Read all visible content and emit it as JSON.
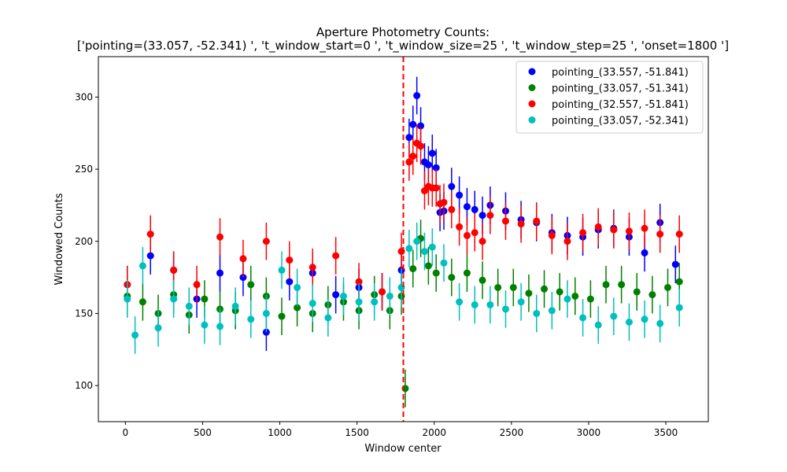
{
  "chart_data": {
    "type": "scatter",
    "title": "Aperture Photometry Counts:",
    "subtitle": "['pointing=(33.057, -52.341) ', 't_window_start=0 ', 't_window_size=25 ', 't_window_step=25 ', 'onset=1800 ']",
    "xlabel": "Window center",
    "ylabel": "Windowed Counts",
    "xlim": [
      -175,
      3775
    ],
    "ylim": [
      75,
      328
    ],
    "xticks": [
      0,
      500,
      1000,
      1500,
      2000,
      2500,
      3000,
      3500
    ],
    "yticks": [
      100,
      150,
      200,
      250,
      300
    ],
    "grid": false,
    "legend_position": "upper right",
    "onset": {
      "x": 1800,
      "color": "#ff0000",
      "style": "dashed"
    },
    "error_bar_half_width": 13,
    "series": [
      {
        "name": "pointing_(33.557, -51.841)",
        "color": "#0000ff",
        "x": [
          12.5,
          162.5,
          312.5,
          462.5,
          612.5,
          762.5,
          912.5,
          1062.5,
          1212.5,
          1362.5,
          1512.5,
          1662.5,
          1787.5,
          1837.5,
          1862.5,
          1887.5,
          1912.5,
          1937.5,
          1962.5,
          1987.5,
          2012.5,
          2037.5,
          2062.5,
          2112.5,
          2162.5,
          2212.5,
          2262.5,
          2312.5,
          2362.5,
          2462.5,
          2562.5,
          2662.5,
          2762.5,
          2862.5,
          2962.5,
          3062.5,
          3162.5,
          3262.5,
          3362.5,
          3462.5,
          3562.5
        ],
        "y": [
          170,
          190,
          180,
          160,
          178,
          175,
          137,
          172,
          178,
          163,
          168,
          165,
          180,
          272,
          281,
          301,
          280,
          255,
          253,
          261,
          251,
          220,
          221,
          238,
          232,
          224,
          222,
          218,
          225,
          221,
          215,
          213,
          206,
          204,
          203,
          208,
          209,
          203,
          192,
          213,
          184
        ]
      },
      {
        "name": "pointing_(33.057, -51.341)",
        "color": "#008000",
        "x": [
          12.5,
          112.5,
          212.5,
          312.5,
          412.5,
          512.5,
          612.5,
          712.5,
          812.5,
          912.5,
          1012.5,
          1112.5,
          1212.5,
          1312.5,
          1412.5,
          1512.5,
          1612.5,
          1712.5,
          1787.5,
          1812.5,
          1862.5,
          1912.5,
          1962.5,
          2012.5,
          2112.5,
          2212.5,
          2312.5,
          2412.5,
          2512.5,
          2612.5,
          2712.5,
          2812.5,
          2912.5,
          3012.5,
          3112.5,
          3212.5,
          3312.5,
          3412.5,
          3512.5,
          3587.5
        ],
        "y": [
          162,
          158,
          150,
          163,
          149,
          160,
          153,
          152,
          170,
          162,
          148,
          154,
          150,
          156,
          158,
          152,
          163,
          152,
          162,
          98,
          181,
          202,
          183,
          178,
          175,
          178,
          173,
          168,
          168,
          164,
          167,
          165,
          162,
          160,
          170,
          170,
          165,
          163,
          168,
          172
        ]
      },
      {
        "name": "pointing_(32.557, -51.841)",
        "color": "#ff0000",
        "x": [
          12.5,
          162.5,
          312.5,
          462.5,
          612.5,
          762.5,
          912.5,
          1062.5,
          1212.5,
          1362.5,
          1512.5,
          1662.5,
          1787.5,
          1837.5,
          1862.5,
          1887.5,
          1912.5,
          1937.5,
          1962.5,
          1987.5,
          2012.5,
          2037.5,
          2062.5,
          2112.5,
          2162.5,
          2212.5,
          2262.5,
          2312.5,
          2362.5,
          2462.5,
          2562.5,
          2662.5,
          2762.5,
          2862.5,
          2962.5,
          3062.5,
          3162.5,
          3262.5,
          3362.5,
          3462.5,
          3587.5
        ],
        "y": [
          170,
          205,
          180,
          170,
          203,
          188,
          200,
          187,
          182,
          190,
          172,
          165,
          193,
          255,
          259,
          268,
          266,
          235,
          238,
          237,
          237,
          226,
          227,
          222,
          210,
          204,
          206,
          200,
          218,
          214,
          212,
          214,
          204,
          200,
          206,
          210,
          208,
          207,
          209,
          205,
          205
        ]
      },
      {
        "name": "pointing_(33.057, -52.341)",
        "color": "#00bfbf",
        "x": [
          12.5,
          62.5,
          112.5,
          212.5,
          312.5,
          412.5,
          512.5,
          612.5,
          712.5,
          812.5,
          912.5,
          1012.5,
          1112.5,
          1212.5,
          1312.5,
          1412.5,
          1512.5,
          1612.5,
          1712.5,
          1787.5,
          1837.5,
          1887.5,
          1937.5,
          1987.5,
          2062.5,
          2162.5,
          2262.5,
          2362.5,
          2462.5,
          2562.5,
          2662.5,
          2762.5,
          2862.5,
          2962.5,
          3062.5,
          3162.5,
          3262.5,
          3362.5,
          3462.5,
          3587.5
        ],
        "y": [
          160,
          135,
          183,
          140,
          160,
          155,
          142,
          141,
          155,
          146,
          150,
          180,
          168,
          157,
          147,
          162,
          158,
          158,
          162,
          168,
          195,
          200,
          193,
          196,
          185,
          158,
          156,
          156,
          153,
          158,
          150,
          152,
          160,
          147,
          142,
          148,
          144,
          146,
          143,
          154
        ]
      }
    ]
  }
}
